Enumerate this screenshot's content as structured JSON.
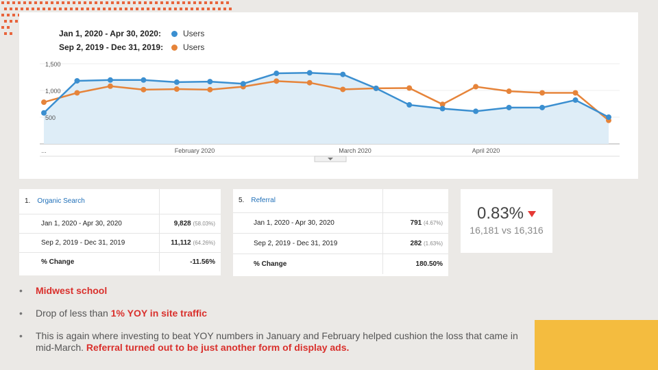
{
  "legend": [
    {
      "range": "Jan 1, 2020 - Apr 30, 2020:",
      "series": "Users",
      "color": "#3b8fd0"
    },
    {
      "range": "Sep 2, 2019 - Dec 31, 2019:",
      "series": "Users",
      "color": "#e6843a"
    }
  ],
  "chart_data": {
    "type": "line",
    "y_ticks": [
      "1,500",
      "1,000",
      "500"
    ],
    "x_labels": [
      "...",
      "February 2020",
      "March 2020",
      "April 2020"
    ],
    "ylim": [
      0,
      1500
    ],
    "series": [
      {
        "name": "Users",
        "color": "#3b8fd0",
        "values": [
          580,
          1180,
          1195,
          1195,
          1155,
          1165,
          1125,
          1320,
          1330,
          1300,
          1040,
          730,
          660,
          610,
          680,
          680,
          820,
          500
        ]
      },
      {
        "name": "Users",
        "color": "#e6843a",
        "values": [
          780,
          955,
          1080,
          1015,
          1025,
          1015,
          1070,
          1175,
          1145,
          1020,
          1040,
          1045,
          740,
          1070,
          985,
          955,
          955,
          440
        ]
      }
    ]
  },
  "organic": {
    "title": "Organic Search",
    "index": "1.",
    "rows": [
      {
        "label": "Jan 1, 2020 - Apr 30, 2020",
        "value": "9,828",
        "pct": "(58.03%)"
      },
      {
        "label": "Sep 2, 2019 - Dec 31, 2019",
        "value": "11,112",
        "pct": "(64.26%)"
      }
    ],
    "change_label": "% Change",
    "change_value": "-11.56%"
  },
  "referral": {
    "title": "Referral",
    "index": "5.",
    "rows": [
      {
        "label": "Jan 1, 2020 - Apr 30, 2020",
        "value": "791",
        "pct": "(4.67%)"
      },
      {
        "label": "Sep 2, 2019 - Dec 31, 2019",
        "value": "282",
        "pct": "(1.63%)"
      }
    ],
    "change_label": "% Change",
    "change_value": "180.50%"
  },
  "kpi": {
    "value": "0.83%",
    "compare": "16,181 vs 16,316"
  },
  "bullets": {
    "b1": "Midwest school",
    "b2_pre": "Drop of less than ",
    "b2_red": "1% YOY in site traffic",
    "b3_pre": "This is again where investing to beat YOY numbers in January and February helped cushion the loss that came in mid-March. ",
    "b3_red": "Referral turned out to be just another form of display ads.",
    "mark": "•"
  }
}
